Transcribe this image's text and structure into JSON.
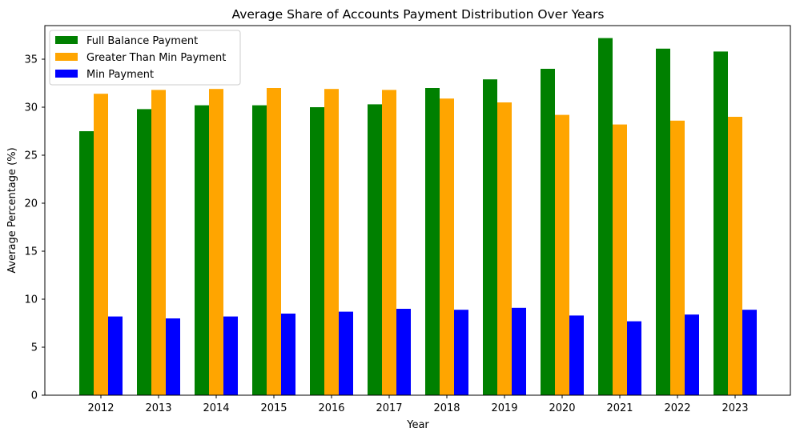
{
  "chart_data": {
    "type": "bar",
    "title": "Average Share of Accounts Payment Distribution Over Years",
    "xlabel": "Year",
    "ylabel": "Average Percentage (%)",
    "ylim": [
      0,
      38.5
    ],
    "yticks": [
      0,
      5,
      10,
      15,
      20,
      25,
      30,
      35
    ],
    "grid": false,
    "legend_position": "top-left",
    "categories": [
      "2012",
      "2013",
      "2014",
      "2015",
      "2016",
      "2017",
      "2018",
      "2019",
      "2020",
      "2021",
      "2022",
      "2023"
    ],
    "series": [
      {
        "name": "Full Balance Payment",
        "color": "#008000",
        "values": [
          27.5,
          29.8,
          30.2,
          30.2,
          30.0,
          30.3,
          32.0,
          32.9,
          34.0,
          37.2,
          36.1,
          35.8
        ]
      },
      {
        "name": "Greater Than Min Payment",
        "color": "#ffa500",
        "values": [
          31.4,
          31.8,
          31.9,
          32.0,
          31.9,
          31.8,
          30.9,
          30.5,
          29.2,
          28.2,
          28.6,
          29.0
        ]
      },
      {
        "name": "Min Payment",
        "color": "#0000ff",
        "values": [
          8.2,
          8.0,
          8.2,
          8.5,
          8.7,
          9.0,
          8.9,
          9.1,
          8.3,
          7.7,
          8.4,
          8.9
        ]
      }
    ]
  }
}
